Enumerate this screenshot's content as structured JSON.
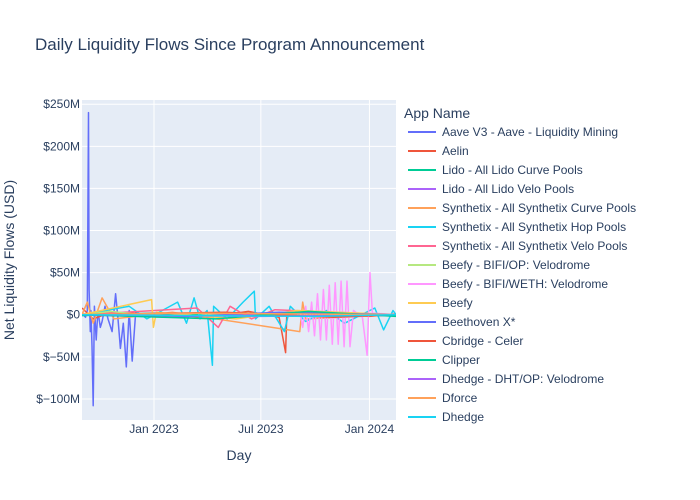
{
  "chart_data": {
    "type": "line",
    "title": "Daily Liquidity Flows Since Program Announcement",
    "xlabel": "Day",
    "ylabel": "Net Liquidity Flows (USD)",
    "legend_title": "App Name",
    "legend_position": "right",
    "grid": true,
    "x_range": [
      "2022-09-01",
      "2024-02-15"
    ],
    "ylim": [
      -125000000,
      255000000
    ],
    "x_ticks": [
      {
        "date": "2023-01-01",
        "label": "Jan 2023"
      },
      {
        "date": "2023-07-01",
        "label": "Jul 2023"
      },
      {
        "date": "2024-01-01",
        "label": "Jan 2024"
      }
    ],
    "y_ticks": [
      {
        "value": 250000000,
        "label": "$250M"
      },
      {
        "value": 200000000,
        "label": "$200M"
      },
      {
        "value": 150000000,
        "label": "$150M"
      },
      {
        "value": 100000000,
        "label": "$100M"
      },
      {
        "value": 50000000,
        "label": "$50M"
      },
      {
        "value": 0,
        "label": "$0"
      },
      {
        "value": -50000000,
        "label": "$−50M"
      },
      {
        "value": -100000000,
        "label": "$−100M"
      }
    ],
    "series": [
      {
        "name": "Aave V3 - Aave - Liquidity Mining",
        "color": "#636efa",
        "points": [
          [
            "2022-09-01",
            2000000
          ],
          [
            "2022-09-07",
            -3000000
          ],
          [
            "2022-09-10",
            5000000
          ],
          [
            "2022-09-12",
            240000000
          ],
          [
            "2022-09-13",
            30000000
          ],
          [
            "2022-09-15",
            -20000000
          ],
          [
            "2022-09-16",
            5000000
          ],
          [
            "2022-09-18",
            -37000000
          ],
          [
            "2022-09-20",
            -108000000
          ],
          [
            "2022-09-22",
            10000000
          ],
          [
            "2022-09-25",
            -30000000
          ],
          [
            "2022-09-28",
            5000000
          ],
          [
            "2022-10-02",
            -15000000
          ],
          [
            "2022-10-05",
            -8000000
          ],
          [
            "2022-10-10",
            10000000
          ],
          [
            "2022-10-15",
            -5000000
          ],
          [
            "2022-10-22",
            -20000000
          ],
          [
            "2022-10-28",
            25000000
          ],
          [
            "2022-11-01",
            -5000000
          ],
          [
            "2022-11-05",
            -40000000
          ],
          [
            "2022-11-10",
            -10000000
          ],
          [
            "2022-11-15",
            -62000000
          ],
          [
            "2022-11-20",
            5000000
          ],
          [
            "2022-11-25",
            -55000000
          ],
          [
            "2022-12-01",
            3000000
          ],
          [
            "2022-12-10",
            -2000000
          ],
          [
            "2023-01-15",
            1000000
          ],
          [
            "2023-04-01",
            -1000000
          ],
          [
            "2023-08-01",
            1000000
          ],
          [
            "2024-01-15",
            -1000000
          ],
          [
            "2024-02-15",
            0
          ]
        ]
      },
      {
        "name": "Aelin",
        "color": "#EF553B",
        "points": [
          [
            "2022-09-01",
            8000000
          ],
          [
            "2022-09-20",
            -5000000
          ],
          [
            "2022-10-20",
            3000000
          ],
          [
            "2023-04-01",
            -3000000
          ],
          [
            "2023-06-10",
            4000000
          ],
          [
            "2023-08-01",
            -3000000
          ],
          [
            "2023-08-12",
            -45000000
          ],
          [
            "2023-08-14",
            2000000
          ],
          [
            "2023-10-01",
            3000000
          ],
          [
            "2024-01-01",
            -2000000
          ],
          [
            "2024-02-15",
            1000000
          ]
        ]
      },
      {
        "name": "Lido - All Lido Curve Pools",
        "color": "#00cc96",
        "points": [
          [
            "2022-09-01",
            -1000000
          ],
          [
            "2023-01-01",
            2000000
          ],
          [
            "2023-06-01",
            -2000000
          ],
          [
            "2023-10-01",
            2000000
          ],
          [
            "2024-02-15",
            0
          ]
        ]
      },
      {
        "name": "Lido - All Lido Velo Pools",
        "color": "#ab63fa",
        "points": [
          [
            "2022-09-01",
            1000000
          ],
          [
            "2023-03-01",
            -2000000
          ],
          [
            "2023-09-01",
            1000000
          ],
          [
            "2024-02-15",
            -1000000
          ]
        ]
      },
      {
        "name": "Synthetix - All Synthetix Curve Pools",
        "color": "#FFA15A",
        "points": [
          [
            "2022-09-01",
            0
          ],
          [
            "2022-09-10",
            15000000
          ],
          [
            "2022-09-20",
            -10000000
          ],
          [
            "2022-10-05",
            20000000
          ],
          [
            "2022-10-25",
            -5000000
          ],
          [
            "2023-02-01",
            3000000
          ],
          [
            "2023-09-05",
            -20000000
          ],
          [
            "2023-09-10",
            15000000
          ],
          [
            "2023-09-15",
            -5000000
          ],
          [
            "2024-02-15",
            0
          ]
        ]
      },
      {
        "name": "Synthetix - All Synthetix Hop Pools",
        "color": "#19d3f3",
        "points": [
          [
            "2022-09-01",
            0
          ],
          [
            "2022-11-20",
            10000000
          ],
          [
            "2022-12-20",
            -5000000
          ],
          [
            "2023-02-10",
            15000000
          ],
          [
            "2023-02-25",
            -10000000
          ],
          [
            "2023-03-10",
            20000000
          ],
          [
            "2023-03-20",
            -5000000
          ],
          [
            "2023-04-01",
            5000000
          ],
          [
            "2023-04-10",
            -60000000
          ],
          [
            "2023-04-12",
            10000000
          ],
          [
            "2023-05-05",
            -5000000
          ],
          [
            "2023-06-01",
            15000000
          ],
          [
            "2023-06-20",
            28000000
          ],
          [
            "2023-06-22",
            -5000000
          ],
          [
            "2023-07-15",
            10000000
          ],
          [
            "2023-08-10",
            -20000000
          ],
          [
            "2023-08-20",
            10000000
          ],
          [
            "2023-09-15",
            -8000000
          ],
          [
            "2023-10-20",
            5000000
          ],
          [
            "2023-11-20",
            -10000000
          ],
          [
            "2024-01-10",
            8000000
          ],
          [
            "2024-01-25",
            -18000000
          ],
          [
            "2024-02-10",
            5000000
          ],
          [
            "2024-02-15",
            0
          ]
        ]
      },
      {
        "name": "Synthetix - All Synthetix Velo Pools",
        "color": "#FF6692",
        "points": [
          [
            "2022-09-01",
            0
          ],
          [
            "2023-03-15",
            8000000
          ],
          [
            "2023-04-20",
            -15000000
          ],
          [
            "2023-05-10",
            10000000
          ],
          [
            "2023-06-15",
            -5000000
          ],
          [
            "2023-07-25",
            6000000
          ],
          [
            "2024-02-15",
            0
          ]
        ]
      },
      {
        "name": "Beefy - BIFI/OP: Velodrome",
        "color": "#B6E880",
        "points": [
          [
            "2022-09-01",
            0
          ],
          [
            "2022-10-20",
            4000000
          ],
          [
            "2023-01-20",
            -3000000
          ],
          [
            "2023-06-01",
            2000000
          ],
          [
            "2024-02-15",
            0
          ]
        ]
      },
      {
        "name": "Beefy - BIFI/WETH: Velodrome",
        "color": "#FF97FF",
        "points": [
          [
            "2023-09-01",
            0
          ],
          [
            "2023-09-05",
            5000000
          ],
          [
            "2023-09-10",
            -15000000
          ],
          [
            "2023-09-15",
            10000000
          ],
          [
            "2023-09-20",
            -20000000
          ],
          [
            "2023-09-25",
            15000000
          ],
          [
            "2023-09-30",
            -25000000
          ],
          [
            "2023-10-05",
            25000000
          ],
          [
            "2023-10-10",
            -30000000
          ],
          [
            "2023-10-15",
            30000000
          ],
          [
            "2023-10-20",
            -30000000
          ],
          [
            "2023-10-25",
            35000000
          ],
          [
            "2023-10-30",
            -35000000
          ],
          [
            "2023-11-04",
            38000000
          ],
          [
            "2023-11-09",
            -35000000
          ],
          [
            "2023-11-14",
            40000000
          ],
          [
            "2023-11-19",
            -38000000
          ],
          [
            "2023-11-24",
            40000000
          ],
          [
            "2023-11-29",
            -38000000
          ],
          [
            "2023-12-05",
            5000000
          ],
          [
            "2023-12-20",
            -3000000
          ],
          [
            "2023-12-28",
            -48000000
          ],
          [
            "2024-01-02",
            50000000
          ],
          [
            "2024-01-06",
            2000000
          ],
          [
            "2024-02-15",
            0
          ]
        ]
      },
      {
        "name": "Beefy",
        "color": "#FECB52",
        "points": [
          [
            "2022-09-01",
            0
          ],
          [
            "2022-12-28",
            18000000
          ],
          [
            "2022-12-31",
            -15000000
          ],
          [
            "2023-01-05",
            3000000
          ],
          [
            "2023-05-20",
            -5000000
          ],
          [
            "2023-09-01",
            5000000
          ],
          [
            "2024-02-15",
            0
          ]
        ]
      },
      {
        "name": "Beethoven X*",
        "color": "#636efa",
        "points": [
          [
            "2022-09-01",
            0
          ],
          [
            "2023-02-01",
            -3000000
          ],
          [
            "2023-08-01",
            3000000
          ],
          [
            "2024-02-15",
            0
          ]
        ]
      },
      {
        "name": "Cbridge - Celer",
        "color": "#EF553B",
        "points": [
          [
            "2022-09-01",
            0
          ],
          [
            "2023-05-01",
            3000000
          ],
          [
            "2023-11-01",
            -3000000
          ],
          [
            "2024-02-15",
            0
          ]
        ]
      },
      {
        "name": "Clipper",
        "color": "#00cc96",
        "points": [
          [
            "2022-09-01",
            0
          ],
          [
            "2023-04-15",
            -5000000
          ],
          [
            "2023-09-20",
            4000000
          ],
          [
            "2024-02-15",
            -2000000
          ]
        ]
      },
      {
        "name": "Dhedge - DHT/OP: Velodrome",
        "color": "#ab63fa",
        "points": [
          [
            "2022-09-01",
            0
          ],
          [
            "2023-07-01",
            -2000000
          ],
          [
            "2024-02-15",
            0
          ]
        ]
      },
      {
        "name": "Dforce",
        "color": "#FFA15A",
        "points": [
          [
            "2022-09-01",
            0
          ],
          [
            "2023-03-01",
            2000000
          ],
          [
            "2024-02-15",
            0
          ]
        ]
      },
      {
        "name": "Dhedge",
        "color": "#19d3f3",
        "points": [
          [
            "2022-09-01",
            0
          ],
          [
            "2023-10-01",
            -2000000
          ],
          [
            "2024-02-15",
            0
          ]
        ]
      }
    ]
  }
}
